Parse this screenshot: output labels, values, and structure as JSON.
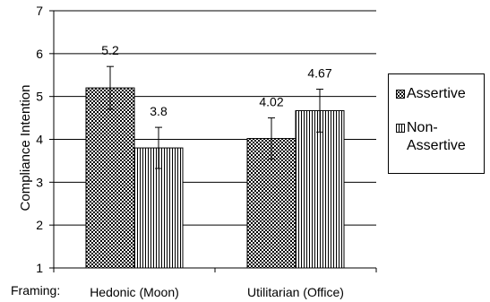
{
  "chart_data": {
    "type": "bar",
    "categories": [
      "Hedonic (Moon)",
      "Utilitarian (Office)"
    ],
    "series": [
      {
        "name": "Assertive",
        "values": [
          5.2,
          4.02
        ],
        "errors": [
          0.5,
          0.48
        ],
        "labels": [
          "5.2",
          "4.02"
        ],
        "pattern": "checker"
      },
      {
        "name": "Non-\nAssertive",
        "values": [
          3.8,
          4.67
        ],
        "errors": [
          0.48,
          0.5
        ],
        "labels": [
          "3.8",
          "4.67"
        ],
        "pattern": "vertical-stripes"
      }
    ],
    "ylabel": "Compliance Intention",
    "xlabel_prefix": "Framing:",
    "ylim": [
      1,
      7
    ],
    "yticks": [
      "1",
      "2",
      "3",
      "4",
      "5",
      "6",
      "7"
    ],
    "grid": true,
    "legend_position": "right"
  },
  "legend": {
    "assertive": "Assertive",
    "non_assertive_line1": "Non-",
    "non_assertive_line2": "Assertive"
  }
}
